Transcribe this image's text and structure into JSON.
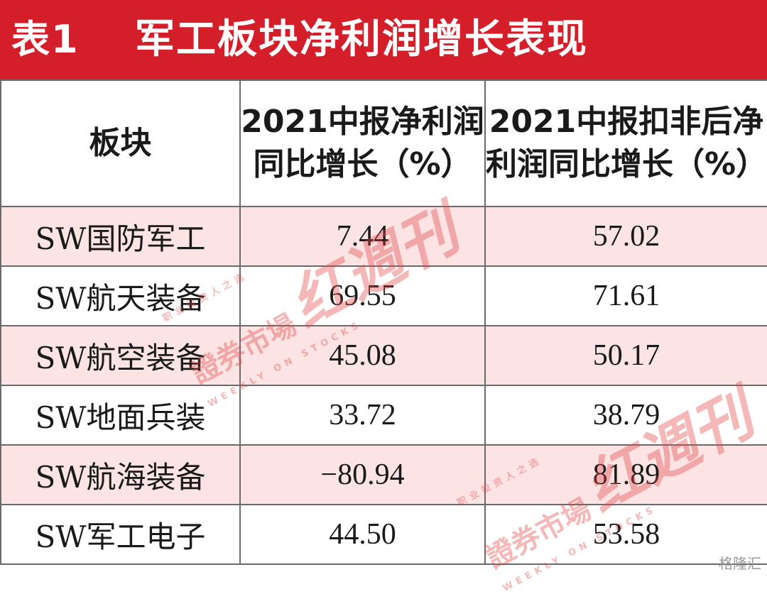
{
  "title": {
    "number": "表1",
    "text": "军工板块净利润增长表现"
  },
  "table": {
    "headers": [
      "板块",
      "2021中报净利润同比增长（%）",
      "2021中报扣非后净利润同比增长（%）"
    ],
    "rows": [
      {
        "sector": "SW国防军工",
        "net_profit_growth": "7.44",
        "deducted_net_profit_growth": "57.02"
      },
      {
        "sector": "SW航天装备",
        "net_profit_growth": "69.55",
        "deducted_net_profit_growth": "71.61"
      },
      {
        "sector": "SW航空装备",
        "net_profit_growth": "45.08",
        "deducted_net_profit_growth": "50.17"
      },
      {
        "sector": "SW地面兵装",
        "net_profit_growth": "33.72",
        "deducted_net_profit_growth": "38.79"
      },
      {
        "sector": "SW航海装备",
        "net_profit_growth": "−80.94",
        "deducted_net_profit_growth": "81.89"
      },
      {
        "sector": "SW军工电子",
        "net_profit_growth": "44.50",
        "deducted_net_profit_growth": "53.58"
      }
    ]
  },
  "watermark": {
    "small_text": "职业投资人之选",
    "main_text": "證券市場",
    "logo_text": "红週刊",
    "english": "WEEKLY ON STOCKS"
  },
  "corner_logo": "格隆汇",
  "colors": {
    "header_red": "#d41f2b",
    "row_shade": "#fbe4e3",
    "watermark": "#e34747"
  }
}
